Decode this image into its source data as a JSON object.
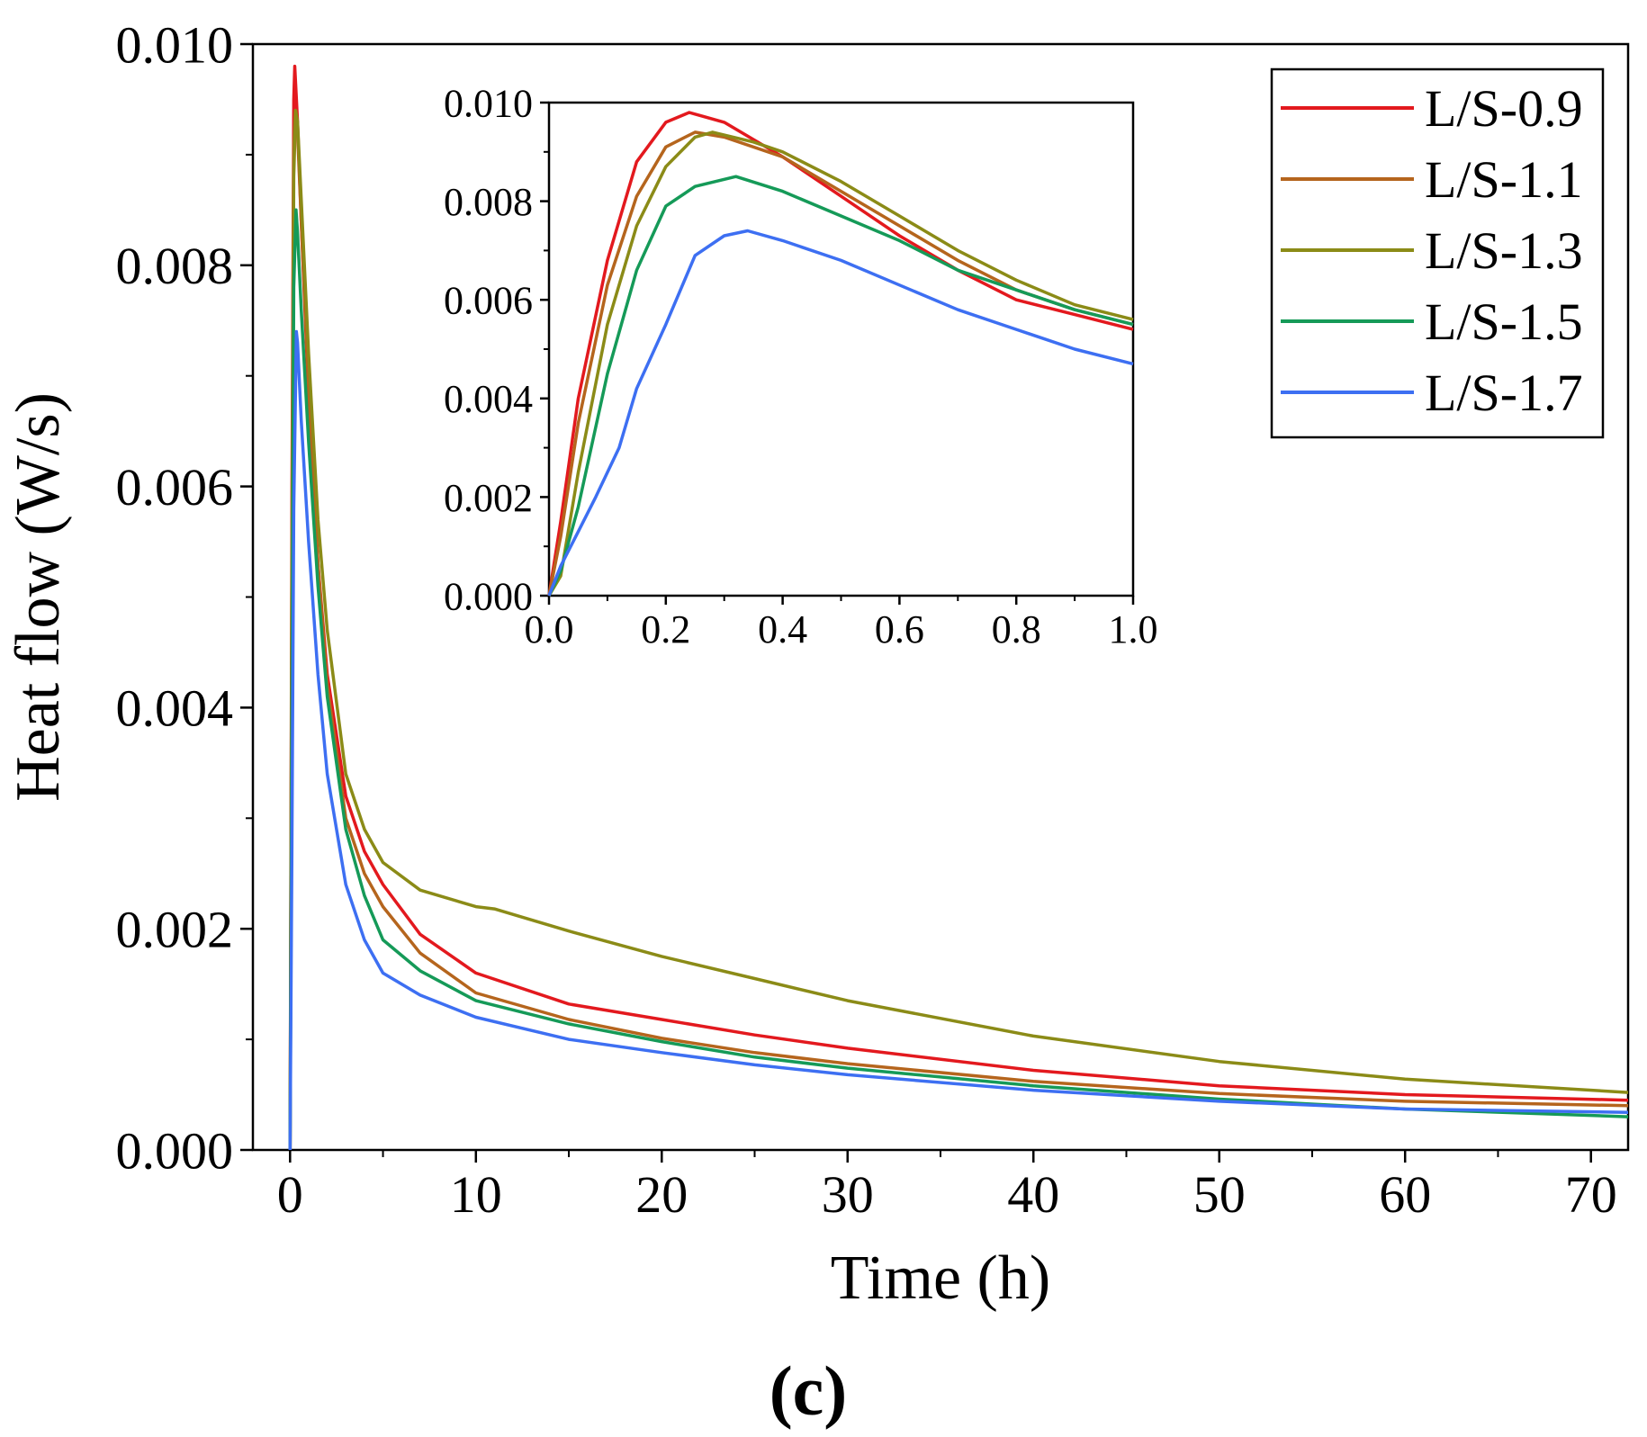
{
  "panel_label": "(c)",
  "chart_data": [
    {
      "id": "main",
      "type": "line",
      "title": "",
      "xlabel": "Time (h)",
      "ylabel": "Heat flow (W/s)",
      "xlim": [
        -2,
        72
      ],
      "ylim": [
        0,
        0.01
      ],
      "xticks": [
        0,
        10,
        20,
        30,
        40,
        50,
        60,
        70
      ],
      "xtick_labels": [
        "0",
        "10",
        "20",
        "30",
        "40",
        "50",
        "60",
        "70"
      ],
      "yticks": [
        0,
        0.002,
        0.004,
        0.006,
        0.008,
        0.01
      ],
      "ytick_labels": [
        "0.000",
        "0.002",
        "0.004",
        "0.006",
        "0.008",
        "0.010"
      ],
      "legend_position": "top-right",
      "series": [
        {
          "name": "L/S-0.9",
          "color": "#e3191e",
          "x": [
            0,
            0.1,
            0.2,
            0.25,
            0.4,
            0.6,
            1,
            1.5,
            2,
            3,
            4,
            5,
            7,
            10,
            15,
            20,
            25,
            30,
            40,
            50,
            60,
            72
          ],
          "y": [
            0,
            0.006,
            0.0095,
            0.0098,
            0.0093,
            0.0084,
            0.0068,
            0.0053,
            0.0043,
            0.0032,
            0.0027,
            0.0024,
            0.00195,
            0.0016,
            0.00132,
            0.00118,
            0.00104,
            0.00092,
            0.00072,
            0.00058,
            0.0005,
            0.00045
          ]
        },
        {
          "name": "L/S-1.1",
          "color": "#b5651d",
          "x": [
            0,
            0.1,
            0.2,
            0.28,
            0.4,
            0.6,
            1,
            1.5,
            2,
            3,
            4,
            5,
            7,
            10,
            15,
            20,
            25,
            30,
            40,
            50,
            60,
            72
          ],
          "y": [
            0,
            0.0055,
            0.0091,
            0.0094,
            0.0092,
            0.0084,
            0.0069,
            0.0053,
            0.0042,
            0.003,
            0.0025,
            0.0022,
            0.00178,
            0.00142,
            0.00118,
            0.00101,
            0.00088,
            0.00078,
            0.00062,
            0.00051,
            0.00044,
            0.0004
          ]
        },
        {
          "name": "L/S-1.3",
          "color": "#8b8b17",
          "x": [
            0,
            0.1,
            0.2,
            0.3,
            0.4,
            0.6,
            1,
            1.5,
            2,
            3,
            4,
            5,
            7,
            10,
            11,
            15,
            20,
            25,
            30,
            40,
            50,
            60,
            72
          ],
          "y": [
            0,
            0.005,
            0.0088,
            0.0094,
            0.0093,
            0.0086,
            0.0072,
            0.0057,
            0.0047,
            0.0034,
            0.0029,
            0.0026,
            0.00235,
            0.0022,
            0.00218,
            0.00198,
            0.00175,
            0.00155,
            0.00135,
            0.00103,
            0.0008,
            0.00064,
            0.00052
          ]
        },
        {
          "name": "L/S-1.5",
          "color": "#159a58",
          "x": [
            0,
            0.1,
            0.2,
            0.32,
            0.4,
            0.6,
            1,
            1.5,
            2,
            3,
            4,
            5,
            7,
            10,
            15,
            20,
            25,
            30,
            40,
            50,
            60,
            72
          ],
          "y": [
            0,
            0.004,
            0.0078,
            0.0085,
            0.0083,
            0.0076,
            0.0064,
            0.0051,
            0.0041,
            0.0029,
            0.0023,
            0.0019,
            0.00162,
            0.00135,
            0.00114,
            0.00098,
            0.00084,
            0.00074,
            0.00058,
            0.00046,
            0.00037,
            0.0003
          ]
        },
        {
          "name": "L/S-1.7",
          "color": "#3d6ff2",
          "x": [
            0,
            0.1,
            0.2,
            0.34,
            0.4,
            0.6,
            1,
            1.5,
            2,
            3,
            4,
            5,
            7,
            10,
            15,
            20,
            25,
            30,
            40,
            50,
            60,
            72
          ],
          "y": [
            0,
            0.0028,
            0.0058,
            0.0074,
            0.0073,
            0.0066,
            0.0055,
            0.0043,
            0.0034,
            0.0024,
            0.0019,
            0.0016,
            0.0014,
            0.0012,
            0.001,
            0.00088,
            0.00077,
            0.00068,
            0.00054,
            0.00044,
            0.00037,
            0.00034
          ]
        }
      ]
    },
    {
      "id": "inset",
      "type": "line",
      "title": "",
      "xlabel": "",
      "ylabel": "",
      "xlim": [
        0,
        1
      ],
      "ylim": [
        0,
        0.01
      ],
      "xticks": [
        0,
        0.2,
        0.4,
        0.6,
        0.8,
        1
      ],
      "xtick_labels": [
        "0.0",
        "0.2",
        "0.4",
        "0.6",
        "0.8",
        "1.0"
      ],
      "yticks": [
        0,
        0.002,
        0.004,
        0.006,
        0.008,
        0.01
      ],
      "ytick_labels": [
        "0.000",
        "0.002",
        "0.004",
        "0.006",
        "0.008",
        "0.010"
      ],
      "position": "upper-center",
      "series": [
        {
          "name": "L/S-0.9",
          "color": "#e3191e",
          "x": [
            0,
            0.02,
            0.05,
            0.1,
            0.15,
            0.2,
            0.24,
            0.3,
            0.4,
            0.5,
            0.6,
            0.7,
            0.8,
            0.9,
            1.0
          ],
          "y": [
            0,
            0.0015,
            0.004,
            0.0068,
            0.0088,
            0.0096,
            0.0098,
            0.0096,
            0.0089,
            0.0081,
            0.0073,
            0.0066,
            0.006,
            0.0057,
            0.0054
          ]
        },
        {
          "name": "L/S-1.1",
          "color": "#b5651d",
          "x": [
            0,
            0.02,
            0.05,
            0.1,
            0.15,
            0.2,
            0.25,
            0.3,
            0.4,
            0.5,
            0.6,
            0.7,
            0.8,
            0.9,
            1.0
          ],
          "y": [
            0,
            0.0012,
            0.0035,
            0.0063,
            0.0081,
            0.0091,
            0.0094,
            0.0093,
            0.0089,
            0.0082,
            0.0075,
            0.0068,
            0.0062,
            0.0058,
            0.0055
          ]
        },
        {
          "name": "L/S-1.3",
          "color": "#8b8b17",
          "x": [
            0,
            0.02,
            0.05,
            0.1,
            0.15,
            0.2,
            0.25,
            0.28,
            0.35,
            0.4,
            0.5,
            0.6,
            0.7,
            0.8,
            0.9,
            1.0
          ],
          "y": [
            0,
            0.0004,
            0.0025,
            0.0055,
            0.0075,
            0.0087,
            0.0093,
            0.0094,
            0.0092,
            0.009,
            0.0084,
            0.0077,
            0.007,
            0.0064,
            0.0059,
            0.0056
          ]
        },
        {
          "name": "L/S-1.5",
          "color": "#159a58",
          "x": [
            0,
            0.02,
            0.05,
            0.1,
            0.15,
            0.2,
            0.25,
            0.32,
            0.4,
            0.5,
            0.6,
            0.7,
            0.8,
            0.9,
            1.0
          ],
          "y": [
            0,
            0.0005,
            0.0018,
            0.0045,
            0.0066,
            0.0079,
            0.0083,
            0.0085,
            0.0082,
            0.0077,
            0.0072,
            0.0066,
            0.0062,
            0.0058,
            0.0055
          ]
        },
        {
          "name": "L/S-1.7",
          "color": "#3d6ff2",
          "x": [
            0,
            0.02,
            0.05,
            0.08,
            0.12,
            0.15,
            0.2,
            0.25,
            0.3,
            0.34,
            0.4,
            0.5,
            0.6,
            0.7,
            0.8,
            0.9,
            1.0
          ],
          "y": [
            0,
            0.0006,
            0.0013,
            0.002,
            0.003,
            0.0042,
            0.0055,
            0.0069,
            0.0073,
            0.0074,
            0.0072,
            0.0068,
            0.0063,
            0.0058,
            0.0054,
            0.005,
            0.0047
          ]
        }
      ]
    }
  ]
}
